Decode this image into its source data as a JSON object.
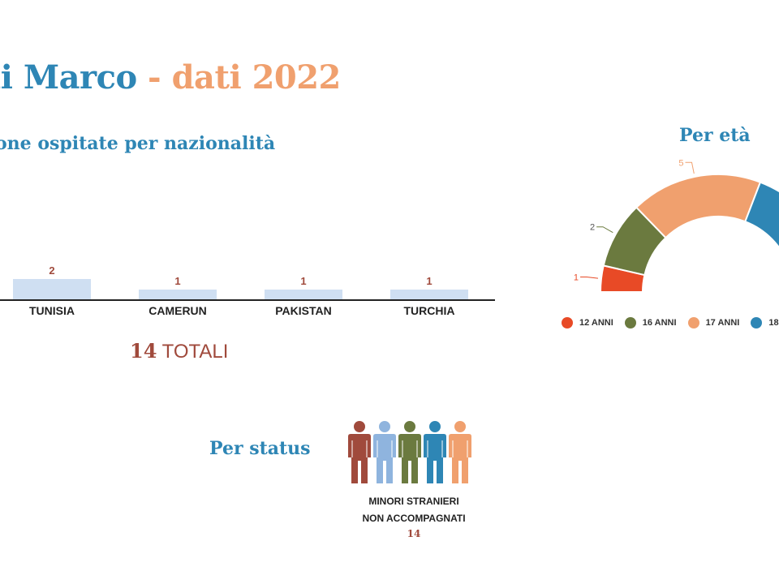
{
  "page": {
    "title_part1": "li Marco",
    "title_separator": " - ",
    "title_part2": "dati 2022"
  },
  "nationality": {
    "heading": "one ospitate per nazionalità",
    "totals_number": "14",
    "totals_label": " TOTALI"
  },
  "age": {
    "heading": "Per età"
  },
  "status": {
    "heading": "Per status",
    "label_line1": "MINORI STRANIERI",
    "label_line2": "NON ACCOMPAGNATI",
    "count": "14",
    "people_colors": [
      "#a04a3c",
      "#8fb4de",
      "#6b7a3f",
      "#2e86b5",
      "#f0a06e"
    ]
  },
  "chart_data": [
    {
      "type": "bar",
      "categories": [
        "TUNISIA",
        "CAMERUN",
        "PAKISTAN",
        "TURCHIA"
      ],
      "values": [
        2,
        1,
        1,
        1
      ],
      "title": "",
      "xlabel": "",
      "ylabel": "",
      "grid": false,
      "bar_color": "#cfdff2",
      "label_color": "#a04a3c"
    },
    {
      "type": "pie",
      "style": "half-donut",
      "categories": [
        "12 ANNI",
        "16 ANNI",
        "17 ANNI",
        "18"
      ],
      "values": [
        1,
        2,
        5,
        null
      ],
      "colors": [
        "#e84a26",
        "#6b7a3f",
        "#f0a06e",
        "#2e86b5"
      ],
      "legend_position": "bottom",
      "title": ""
    }
  ]
}
